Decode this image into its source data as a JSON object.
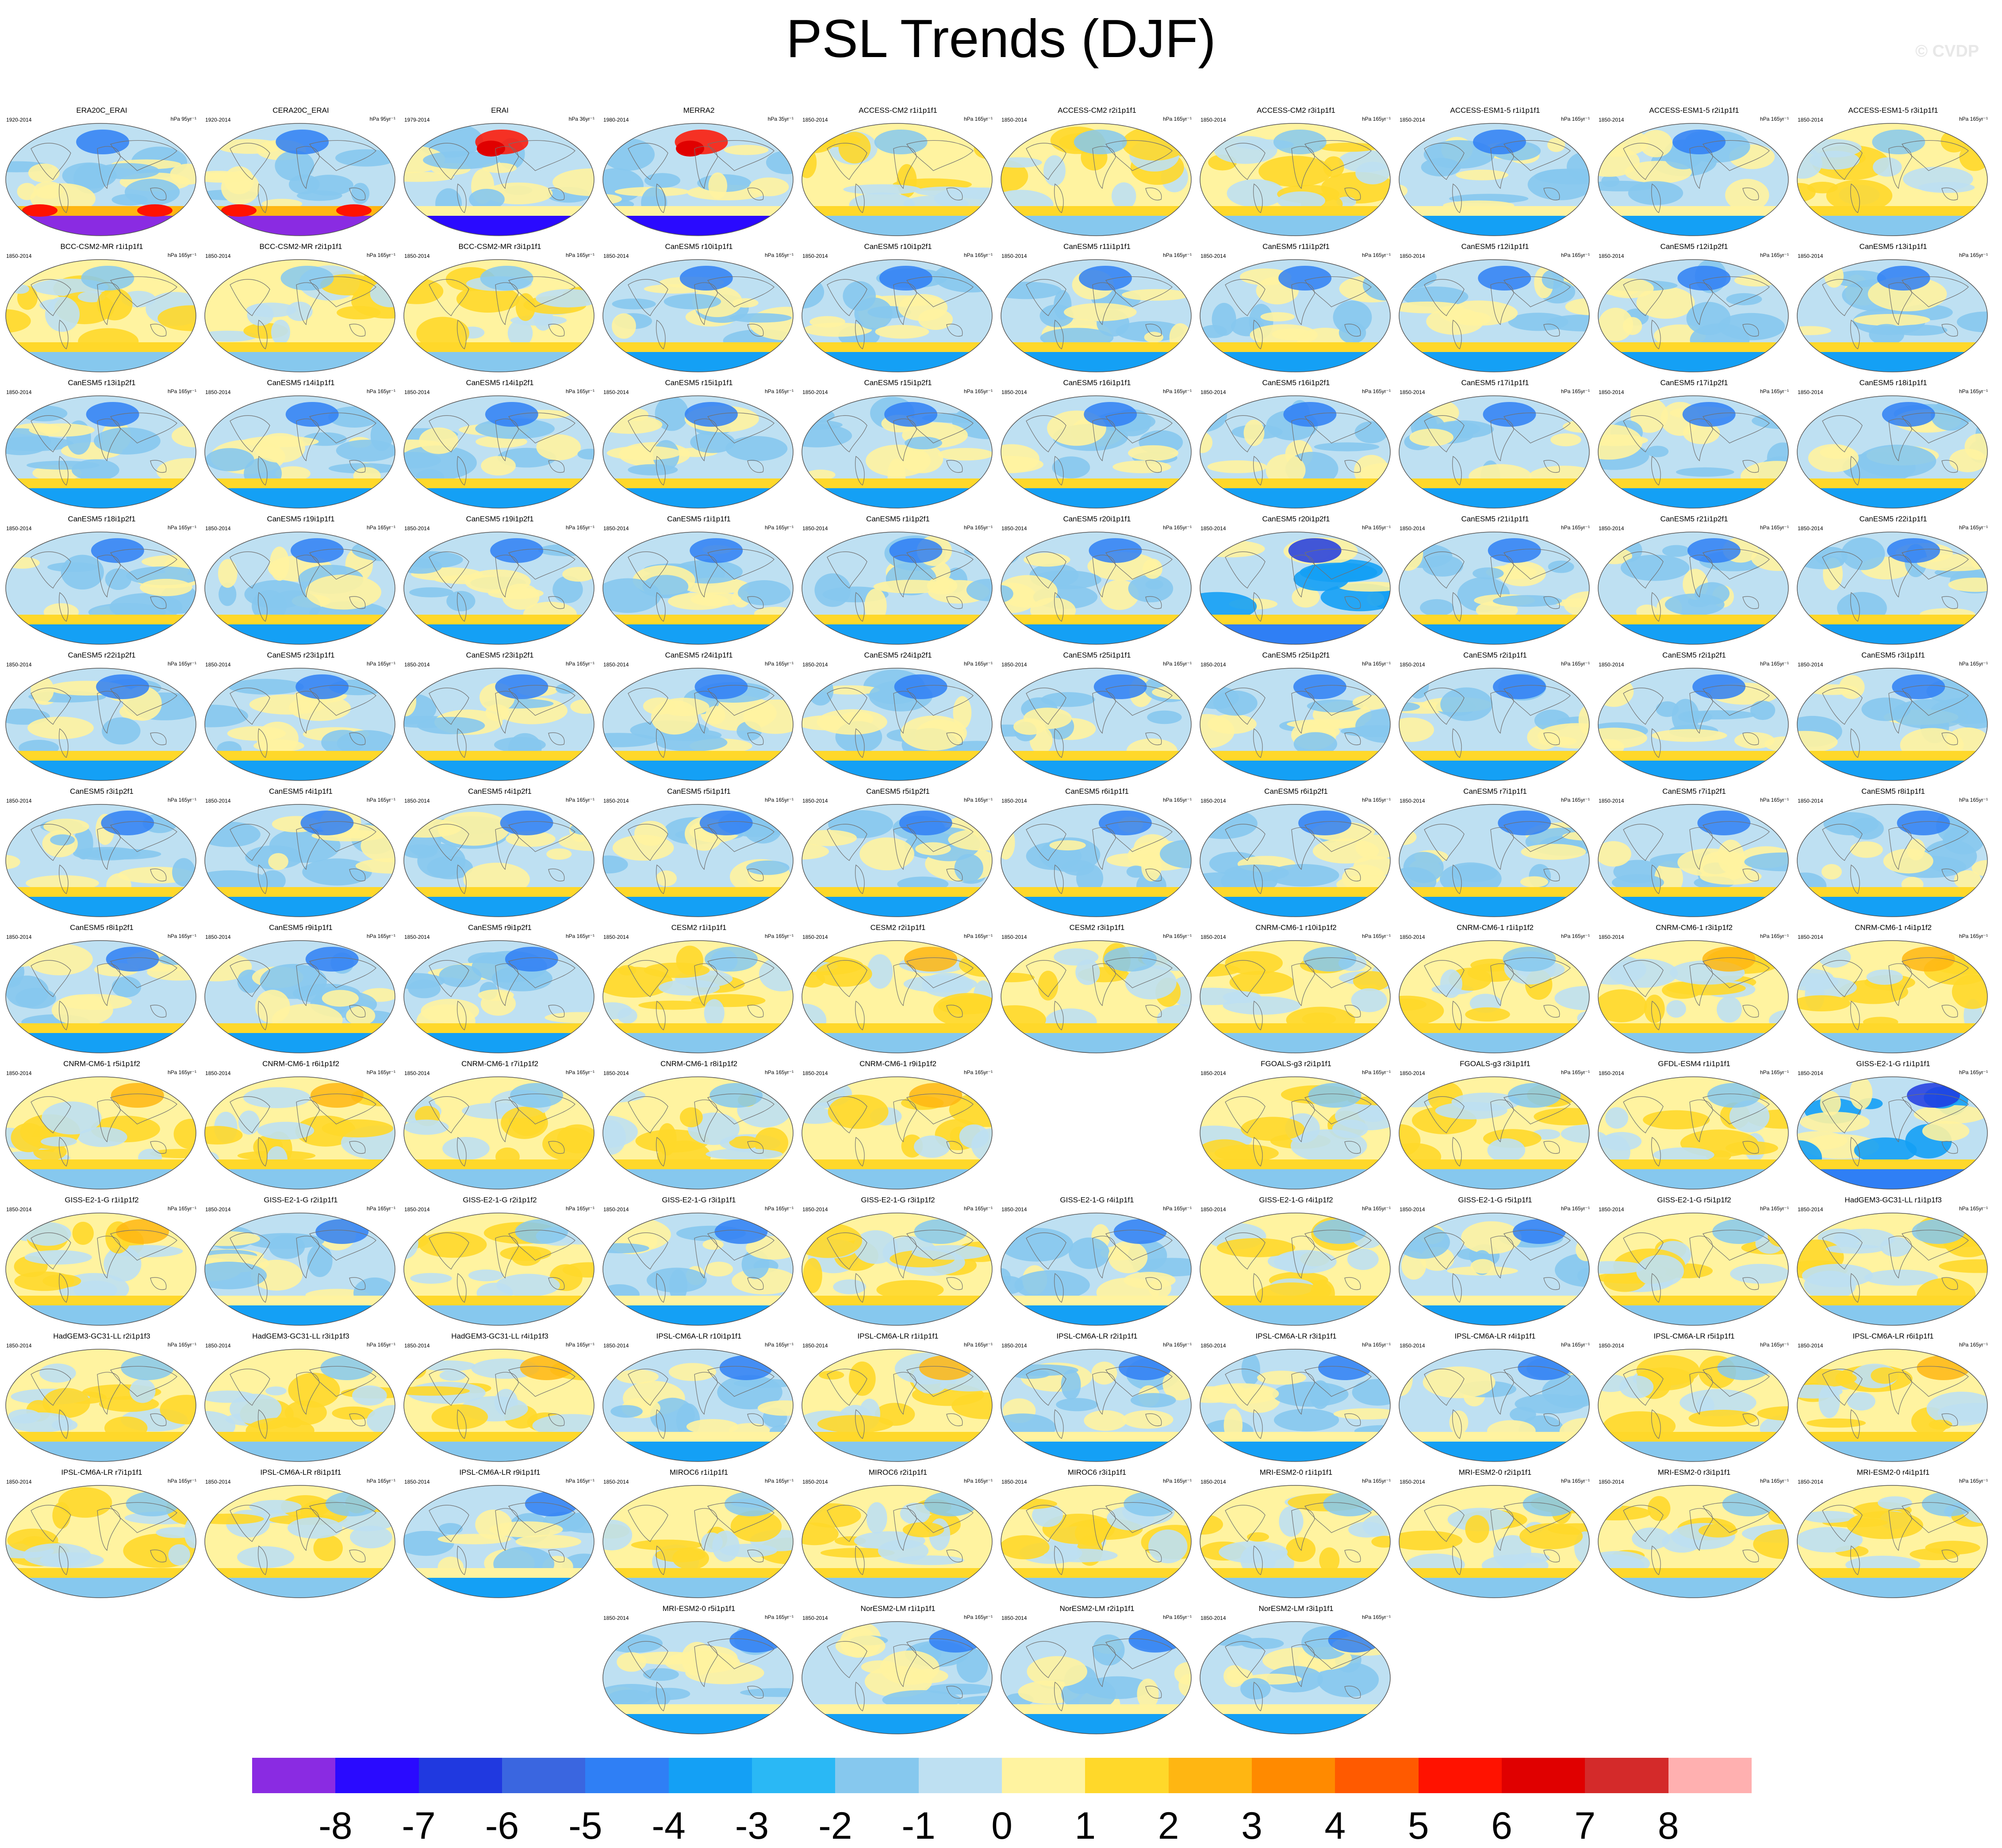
{
  "title": "PSL Trends (DJF)",
  "copyright": "© CVDP",
  "map_type": "global ellipse projection, sea-level pressure trend shading with coastlines",
  "panels": [
    {
      "name": "ERA20C_ERAI",
      "period": "1920-2014",
      "units": "hPa 95yr⁻¹",
      "pattern": "obs-strong-south"
    },
    {
      "name": "CERA20C_ERAI",
      "period": "1920-2014",
      "units": "hPa 95yr⁻¹",
      "pattern": "obs-strong-south"
    },
    {
      "name": "ERAI",
      "period": "1979-2014",
      "units": "hPa 36yr⁻¹",
      "pattern": "obs-strong-north"
    },
    {
      "name": "MERRA2",
      "period": "1980-2014",
      "units": "hPa 35yr⁻¹",
      "pattern": "obs-strong-north"
    },
    {
      "name": "ACCESS-CM2 r1i1p1f1",
      "period": "1850-2014",
      "units": "hPa 165yr⁻¹",
      "pattern": "yellow"
    },
    {
      "name": "ACCESS-CM2 r2i1p1f1",
      "period": "1850-2014",
      "units": "hPa 165yr⁻¹",
      "pattern": "yellow"
    },
    {
      "name": "ACCESS-CM2 r3i1p1f1",
      "period": "1850-2014",
      "units": "hPa 165yr⁻¹",
      "pattern": "yellow"
    },
    {
      "name": "ACCESS-ESM1-5 r1i1p1f1",
      "period": "1850-2014",
      "units": "hPa 165yr⁻¹",
      "pattern": "mixed"
    },
    {
      "name": "ACCESS-ESM1-5 r2i1p1f1",
      "period": "1850-2014",
      "units": "hPa 165yr⁻¹",
      "pattern": "mixed"
    },
    {
      "name": "ACCESS-ESM1-5 r3i1p1f1",
      "period": "1850-2014",
      "units": "hPa 165yr⁻¹",
      "pattern": "yellow"
    },
    {
      "name": "BCC-CSM2-MR r1i1p1f1",
      "period": "1850-2014",
      "units": "hPa 165yr⁻¹",
      "pattern": "yellow"
    },
    {
      "name": "BCC-CSM2-MR r2i1p1f1",
      "period": "1850-2014",
      "units": "hPa 165yr⁻¹",
      "pattern": "yellow"
    },
    {
      "name": "BCC-CSM2-MR r3i1p1f1",
      "period": "1850-2014",
      "units": "hPa 165yr⁻¹",
      "pattern": "yellow"
    },
    {
      "name": "CanESM5 r10i1p1f1",
      "period": "1850-2014",
      "units": "hPa 165yr⁻¹",
      "pattern": "blue"
    },
    {
      "name": "CanESM5 r10i1p2f1",
      "period": "1850-2014",
      "units": "hPa 165yr⁻¹",
      "pattern": "blue"
    },
    {
      "name": "CanESM5 r11i1p1f1",
      "period": "1850-2014",
      "units": "hPa 165yr⁻¹",
      "pattern": "blue"
    },
    {
      "name": "CanESM5 r11i1p2f1",
      "period": "1850-2014",
      "units": "hPa 165yr⁻¹",
      "pattern": "blue"
    },
    {
      "name": "CanESM5 r12i1p1f1",
      "period": "1850-2014",
      "units": "hPa 165yr⁻¹",
      "pattern": "blue"
    },
    {
      "name": "CanESM5 r12i1p2f1",
      "period": "1850-2014",
      "units": "hPa 165yr⁻¹",
      "pattern": "blue"
    },
    {
      "name": "CanESM5 r13i1p1f1",
      "period": "1850-2014",
      "units": "hPa 165yr⁻¹",
      "pattern": "blue"
    },
    {
      "name": "CanESM5 r13i1p2f1",
      "period": "1850-2014",
      "units": "hPa 165yr⁻¹",
      "pattern": "blue"
    },
    {
      "name": "CanESM5 r14i1p1f1",
      "period": "1850-2014",
      "units": "hPa 165yr⁻¹",
      "pattern": "blue"
    },
    {
      "name": "CanESM5 r14i1p2f1",
      "period": "1850-2014",
      "units": "hPa 165yr⁻¹",
      "pattern": "blue"
    },
    {
      "name": "CanESM5 r15i1p1f1",
      "period": "1850-2014",
      "units": "hPa 165yr⁻¹",
      "pattern": "blue"
    },
    {
      "name": "CanESM5 r15i1p2f1",
      "period": "1850-2014",
      "units": "hPa 165yr⁻¹",
      "pattern": "blue"
    },
    {
      "name": "CanESM5 r16i1p1f1",
      "period": "1850-2014",
      "units": "hPa 165yr⁻¹",
      "pattern": "blue"
    },
    {
      "name": "CanESM5 r16i1p2f1",
      "period": "1850-2014",
      "units": "hPa 165yr⁻¹",
      "pattern": "blue"
    },
    {
      "name": "CanESM5 r17i1p1f1",
      "period": "1850-2014",
      "units": "hPa 165yr⁻¹",
      "pattern": "blue"
    },
    {
      "name": "CanESM5 r17i1p2f1",
      "period": "1850-2014",
      "units": "hPa 165yr⁻¹",
      "pattern": "blue"
    },
    {
      "name": "CanESM5 r18i1p1f1",
      "period": "1850-2014",
      "units": "hPa 165yr⁻¹",
      "pattern": "blue"
    },
    {
      "name": "CanESM5 r18i1p2f1",
      "period": "1850-2014",
      "units": "hPa 165yr⁻¹",
      "pattern": "blue"
    },
    {
      "name": "CanESM5 r19i1p1f1",
      "period": "1850-2014",
      "units": "hPa 165yr⁻¹",
      "pattern": "blue"
    },
    {
      "name": "CanESM5 r19i1p2f1",
      "period": "1850-2014",
      "units": "hPa 165yr⁻¹",
      "pattern": "blue"
    },
    {
      "name": "CanESM5 r1i1p1f1",
      "period": "1850-2014",
      "units": "hPa 165yr⁻¹",
      "pattern": "blue"
    },
    {
      "name": "CanESM5 r1i1p2f1",
      "period": "1850-2014",
      "units": "hPa 165yr⁻¹",
      "pattern": "blue"
    },
    {
      "name": "CanESM5 r20i1p1f1",
      "period": "1850-2014",
      "units": "hPa 165yr⁻¹",
      "pattern": "blue"
    },
    {
      "name": "CanESM5 r20i1p2f1",
      "period": "1850-2014",
      "units": "hPa 165yr⁻¹",
      "pattern": "blue-strong"
    },
    {
      "name": "CanESM5 r21i1p1f1",
      "period": "1850-2014",
      "units": "hPa 165yr⁻¹",
      "pattern": "blue"
    },
    {
      "name": "CanESM5 r21i1p2f1",
      "period": "1850-2014",
      "units": "hPa 165yr⁻¹",
      "pattern": "blue"
    },
    {
      "name": "CanESM5 r22i1p1f1",
      "period": "1850-2014",
      "units": "hPa 165yr⁻¹",
      "pattern": "blue"
    },
    {
      "name": "CanESM5 r22i1p2f1",
      "period": "1850-2014",
      "units": "hPa 165yr⁻¹",
      "pattern": "blue"
    },
    {
      "name": "CanESM5 r23i1p1f1",
      "period": "1850-2014",
      "units": "hPa 165yr⁻¹",
      "pattern": "blue"
    },
    {
      "name": "CanESM5 r23i1p2f1",
      "period": "1850-2014",
      "units": "hPa 165yr⁻¹",
      "pattern": "blue"
    },
    {
      "name": "CanESM5 r24i1p1f1",
      "period": "1850-2014",
      "units": "hPa 165yr⁻¹",
      "pattern": "blue"
    },
    {
      "name": "CanESM5 r24i1p2f1",
      "period": "1850-2014",
      "units": "hPa 165yr⁻¹",
      "pattern": "blue"
    },
    {
      "name": "CanESM5 r25i1p1f1",
      "period": "1850-2014",
      "units": "hPa 165yr⁻¹",
      "pattern": "blue"
    },
    {
      "name": "CanESM5 r25i1p2f1",
      "period": "1850-2014",
      "units": "hPa 165yr⁻¹",
      "pattern": "blue"
    },
    {
      "name": "CanESM5 r2i1p1f1",
      "period": "1850-2014",
      "units": "hPa 165yr⁻¹",
      "pattern": "blue"
    },
    {
      "name": "CanESM5 r2i1p2f1",
      "period": "1850-2014",
      "units": "hPa 165yr⁻¹",
      "pattern": "blue"
    },
    {
      "name": "CanESM5 r3i1p1f1",
      "period": "1850-2014",
      "units": "hPa 165yr⁻¹",
      "pattern": "blue"
    },
    {
      "name": "CanESM5 r3i1p2f1",
      "period": "1850-2014",
      "units": "hPa 165yr⁻¹",
      "pattern": "blue"
    },
    {
      "name": "CanESM5 r4i1p1f1",
      "period": "1850-2014",
      "units": "hPa 165yr⁻¹",
      "pattern": "blue"
    },
    {
      "name": "CanESM5 r4i1p2f1",
      "period": "1850-2014",
      "units": "hPa 165yr⁻¹",
      "pattern": "blue"
    },
    {
      "name": "CanESM5 r5i1p1f1",
      "period": "1850-2014",
      "units": "hPa 165yr⁻¹",
      "pattern": "blue"
    },
    {
      "name": "CanESM5 r5i1p2f1",
      "period": "1850-2014",
      "units": "hPa 165yr⁻¹",
      "pattern": "blue"
    },
    {
      "name": "CanESM5 r6i1p1f1",
      "period": "1850-2014",
      "units": "hPa 165yr⁻¹",
      "pattern": "blue"
    },
    {
      "name": "CanESM5 r6i1p2f1",
      "period": "1850-2014",
      "units": "hPa 165yr⁻¹",
      "pattern": "blue"
    },
    {
      "name": "CanESM5 r7i1p1f1",
      "period": "1850-2014",
      "units": "hPa 165yr⁻¹",
      "pattern": "blue"
    },
    {
      "name": "CanESM5 r7i1p2f1",
      "period": "1850-2014",
      "units": "hPa 165yr⁻¹",
      "pattern": "blue"
    },
    {
      "name": "CanESM5 r8i1p1f1",
      "period": "1850-2014",
      "units": "hPa 165yr⁻¹",
      "pattern": "blue"
    },
    {
      "name": "CanESM5 r8i1p2f1",
      "period": "1850-2014",
      "units": "hPa 165yr⁻¹",
      "pattern": "blue"
    },
    {
      "name": "CanESM5 r9i1p1f1",
      "period": "1850-2014",
      "units": "hPa 165yr⁻¹",
      "pattern": "blue"
    },
    {
      "name": "CanESM5 r9i1p2f1",
      "period": "1850-2014",
      "units": "hPa 165yr⁻¹",
      "pattern": "blue"
    },
    {
      "name": "CESM2 r1i1p1f1",
      "period": "1850-2014",
      "units": "hPa 165yr⁻¹",
      "pattern": "yellow"
    },
    {
      "name": "CESM2 r2i1p1f1",
      "period": "1850-2014",
      "units": "hPa 165yr⁻¹",
      "pattern": "yellow-north"
    },
    {
      "name": "CESM2 r3i1p1f1",
      "period": "1850-2014",
      "units": "hPa 165yr⁻¹",
      "pattern": "yellow"
    },
    {
      "name": "CNRM-CM6-1 r10i1p1f2",
      "period": "1850-2014",
      "units": "hPa 165yr⁻¹",
      "pattern": "yellow"
    },
    {
      "name": "CNRM-CM6-1 r1i1p1f2",
      "period": "1850-2014",
      "units": "hPa 165yr⁻¹",
      "pattern": "yellow"
    },
    {
      "name": "CNRM-CM6-1 r3i1p1f2",
      "period": "1850-2014",
      "units": "hPa 165yr⁻¹",
      "pattern": "yellow-north"
    },
    {
      "name": "CNRM-CM6-1 r4i1p1f2",
      "period": "1850-2014",
      "units": "hPa 165yr⁻¹",
      "pattern": "yellow-north"
    },
    {
      "name": "CNRM-CM6-1 r5i1p1f2",
      "period": "1850-2014",
      "units": "hPa 165yr⁻¹",
      "pattern": "yellow-north"
    },
    {
      "name": "CNRM-CM6-1 r6i1p1f2",
      "period": "1850-2014",
      "units": "hPa 165yr⁻¹",
      "pattern": "yellow-north"
    },
    {
      "name": "CNRM-CM6-1 r7i1p1f2",
      "period": "1850-2014",
      "units": "hPa 165yr⁻¹",
      "pattern": "yellow"
    },
    {
      "name": "CNRM-CM6-1 r8i1p1f2",
      "period": "1850-2014",
      "units": "hPa 165yr⁻¹",
      "pattern": "yellow"
    },
    {
      "name": "CNRM-CM6-1 r9i1p1f2",
      "period": "1850-2014",
      "units": "hPa 165yr⁻¹",
      "pattern": "yellow-north"
    },
    null,
    {
      "name": "FGOALS-g3 r2i1p1f1",
      "period": "1850-2014",
      "units": "hPa 165yr⁻¹",
      "pattern": "yellow"
    },
    {
      "name": "FGOALS-g3 r3i1p1f1",
      "period": "1850-2014",
      "units": "hPa 165yr⁻¹",
      "pattern": "yellow"
    },
    {
      "name": "GFDL-ESM4 r1i1p1f1",
      "period": "1850-2014",
      "units": "hPa 165yr⁻¹",
      "pattern": "yellow"
    },
    {
      "name": "GISS-E2-1-G r1i1p1f1",
      "period": "1850-2014",
      "units": "hPa 165yr⁻¹",
      "pattern": "blue-strong"
    },
    {
      "name": "GISS-E2-1-G r1i1p1f2",
      "period": "1850-2014",
      "units": "hPa 165yr⁻¹",
      "pattern": "yellow-north"
    },
    {
      "name": "GISS-E2-1-G r2i1p1f1",
      "period": "1850-2014",
      "units": "hPa 165yr⁻¹",
      "pattern": "mixed"
    },
    {
      "name": "GISS-E2-1-G r2i1p1f2",
      "period": "1850-2014",
      "units": "hPa 165yr⁻¹",
      "pattern": "yellow"
    },
    {
      "name": "GISS-E2-1-G r3i1p1f1",
      "period": "1850-2014",
      "units": "hPa 165yr⁻¹",
      "pattern": "mixed"
    },
    {
      "name": "GISS-E2-1-G r3i1p1f2",
      "period": "1850-2014",
      "units": "hPa 165yr⁻¹",
      "pattern": "yellow"
    },
    {
      "name": "GISS-E2-1-G r4i1p1f1",
      "period": "1850-2014",
      "units": "hPa 165yr⁻¹",
      "pattern": "mixed"
    },
    {
      "name": "GISS-E2-1-G r4i1p1f2",
      "period": "1850-2014",
      "units": "hPa 165yr⁻¹",
      "pattern": "yellow"
    },
    {
      "name": "GISS-E2-1-G r5i1p1f1",
      "period": "1850-2014",
      "units": "hPa 165yr⁻¹",
      "pattern": "mixed"
    },
    {
      "name": "GISS-E2-1-G r5i1p1f2",
      "period": "1850-2014",
      "units": "hPa 165yr⁻¹",
      "pattern": "yellow"
    },
    {
      "name": "HadGEM3-GC31-LL r1i1p1f3",
      "period": "1850-2014",
      "units": "hPa 165yr⁻¹",
      "pattern": "yellow"
    },
    {
      "name": "HadGEM3-GC31-LL r2i1p1f3",
      "period": "1850-2014",
      "units": "hPa 165yr⁻¹",
      "pattern": "yellow"
    },
    {
      "name": "HadGEM3-GC31-LL r3i1p1f3",
      "period": "1850-2014",
      "units": "hPa 165yr⁻¹",
      "pattern": "yellow"
    },
    {
      "name": "HadGEM3-GC31-LL r4i1p1f3",
      "period": "1850-2014",
      "units": "hPa 165yr⁻¹",
      "pattern": "yellow-north"
    },
    {
      "name": "IPSL-CM6A-LR r10i1p1f1",
      "period": "1850-2014",
      "units": "hPa 165yr⁻¹",
      "pattern": "mixed"
    },
    {
      "name": "IPSL-CM6A-LR r1i1p1f1",
      "period": "1850-2014",
      "units": "hPa 165yr⁻¹",
      "pattern": "yellow-north"
    },
    {
      "name": "IPSL-CM6A-LR r2i1p1f1",
      "period": "1850-2014",
      "units": "hPa 165yr⁻¹",
      "pattern": "mixed"
    },
    {
      "name": "IPSL-CM6A-LR r3i1p1f1",
      "period": "1850-2014",
      "units": "hPa 165yr⁻¹",
      "pattern": "mixed"
    },
    {
      "name": "IPSL-CM6A-LR r4i1p1f1",
      "period": "1850-2014",
      "units": "hPa 165yr⁻¹",
      "pattern": "mixed"
    },
    {
      "name": "IPSL-CM6A-LR r5i1p1f1",
      "period": "1850-2014",
      "units": "hPa 165yr⁻¹",
      "pattern": "yellow"
    },
    {
      "name": "IPSL-CM6A-LR r6i1p1f1",
      "period": "1850-2014",
      "units": "hPa 165yr⁻¹",
      "pattern": "yellow-north"
    },
    {
      "name": "IPSL-CM6A-LR r7i1p1f1",
      "period": "1850-2014",
      "units": "hPa 165yr⁻¹",
      "pattern": "yellow"
    },
    {
      "name": "IPSL-CM6A-LR r8i1p1f1",
      "period": "1850-2014",
      "units": "hPa 165yr⁻¹",
      "pattern": "yellow"
    },
    {
      "name": "IPSL-CM6A-LR r9i1p1f1",
      "period": "1850-2014",
      "units": "hPa 165yr⁻¹",
      "pattern": "mixed"
    },
    {
      "name": "MIROC6 r1i1p1f1",
      "period": "1850-2014",
      "units": "hPa 165yr⁻¹",
      "pattern": "yellow"
    },
    {
      "name": "MIROC6 r2i1p1f1",
      "period": "1850-2014",
      "units": "hPa 165yr⁻¹",
      "pattern": "yellow"
    },
    {
      "name": "MIROC6 r3i1p1f1",
      "period": "1850-2014",
      "units": "hPa 165yr⁻¹",
      "pattern": "yellow"
    },
    {
      "name": "MRI-ESM2-0 r1i1p1f1",
      "period": "1850-2014",
      "units": "hPa 165yr⁻¹",
      "pattern": "yellow"
    },
    {
      "name": "MRI-ESM2-0 r2i1p1f1",
      "period": "1850-2014",
      "units": "hPa 165yr⁻¹",
      "pattern": "yellow"
    },
    {
      "name": "MRI-ESM2-0 r3i1p1f1",
      "period": "1850-2014",
      "units": "hPa 165yr⁻¹",
      "pattern": "yellow"
    },
    {
      "name": "MRI-ESM2-0 r4i1p1f1",
      "period": "1850-2014",
      "units": "hPa 165yr⁻¹",
      "pattern": "yellow"
    },
    null,
    null,
    null,
    {
      "name": "MRI-ESM2-0 r5i1p1f1",
      "period": "1850-2014",
      "units": "hPa 165yr⁻¹",
      "pattern": "mixed"
    },
    {
      "name": "NorESM2-LM r1i1p1f1",
      "period": "1850-2014",
      "units": "hPa 165yr⁻¹",
      "pattern": "mixed"
    },
    {
      "name": "NorESM2-LM r2i1p1f1",
      "period": "1850-2014",
      "units": "hPa 165yr⁻¹",
      "pattern": "mixed"
    },
    {
      "name": "NorESM2-LM r3i1p1f1",
      "period": "1850-2014",
      "units": "hPa 165yr⁻¹",
      "pattern": "mixed"
    }
  ],
  "colorbar": {
    "labels": [
      "-8",
      "-7",
      "-6",
      "-5",
      "-4",
      "-3",
      "-2",
      "-1",
      "0",
      "1",
      "2",
      "3",
      "4",
      "5",
      "6",
      "7",
      "8"
    ],
    "colors": [
      "#8a2be2",
      "#2a0aff",
      "#2039e0",
      "#3a66e0",
      "#2f7ff5",
      "#14a0f5",
      "#2ab8f5",
      "#86c8ee",
      "#bee0f2",
      "#fff3a0",
      "#ffd82a",
      "#ffb612",
      "#ff8a00",
      "#ff5a00",
      "#ff1200",
      "#e00000",
      "#d42a2a",
      "#ffb0b0"
    ]
  }
}
